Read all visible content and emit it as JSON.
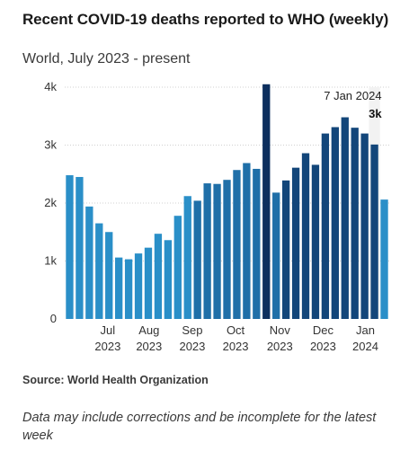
{
  "chart_data": {
    "type": "bar",
    "title": "Recent COVID-19 deaths reported to WHO (weekly)",
    "subtitle": "World, July 2023 - present",
    "x_tick_labels": [
      {
        "month": "Jul",
        "year": "2023"
      },
      {
        "month": "Aug",
        "year": "2023"
      },
      {
        "month": "Sep",
        "year": "2023"
      },
      {
        "month": "Oct",
        "year": "2023"
      },
      {
        "month": "Nov",
        "year": "2023"
      },
      {
        "month": "Dec",
        "year": "2023"
      },
      {
        "month": "Jan",
        "year": "2024"
      }
    ],
    "y_ticks": [
      {
        "value": 0,
        "label": "0"
      },
      {
        "value": 1000,
        "label": "1k"
      },
      {
        "value": 2000,
        "label": "2k"
      },
      {
        "value": 3000,
        "label": "3k"
      },
      {
        "value": 4000,
        "label": "4k"
      }
    ],
    "ylim": [
      0,
      4000
    ],
    "grid": true,
    "values": [
      2480,
      2450,
      1940,
      1650,
      1500,
      1060,
      1030,
      1130,
      1230,
      1470,
      1360,
      1780,
      2120,
      2040,
      2340,
      2330,
      2400,
      2570,
      2690,
      2590,
      4050,
      2180,
      2390,
      2610,
      2860,
      2660,
      3200,
      3310,
      3480,
      3300,
      3200,
      3010,
      2060
    ],
    "highlight": {
      "label": "7 Jan 2024",
      "value_label": "3k"
    },
    "colors": {
      "early": "#2a8fc8",
      "mid": "#1f6fa8",
      "late": "#13467a",
      "peak": "#0d2f5e",
      "latest": "#2a8fc8",
      "grid": "#d0d0d0"
    }
  },
  "source": "Source: World Health Organization",
  "note": "Data may include corrections and be incomplete for the latest week"
}
